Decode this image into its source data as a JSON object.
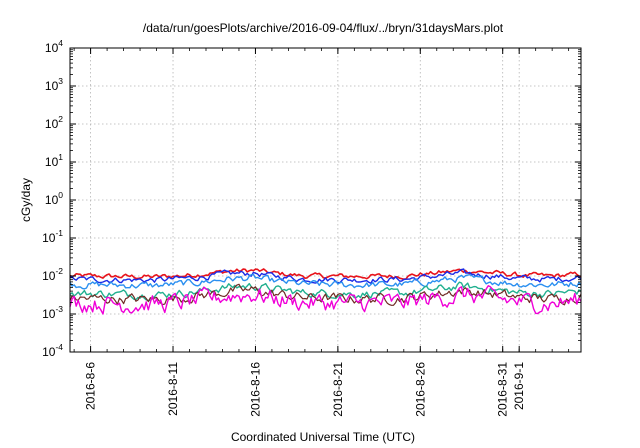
{
  "chart_data": {
    "type": "line",
    "title": "/data/run/goesPlots/archive/2016-09-04/flux/../bryn/31daysMars.plot",
    "xlabel": "Coordinated Universal Time (UTC)",
    "ylabel": "cGy/day",
    "yscale": "log",
    "ylim": [
      0.0001,
      10000
    ],
    "xlim": [
      "2016-08-04T18:00",
      "2016-09-04T18:00"
    ],
    "grid": true,
    "y_ticks": [
      {
        "base": "10",
        "exp": "4",
        "value": 10000
      },
      {
        "base": "10",
        "exp": "3",
        "value": 1000
      },
      {
        "base": "10",
        "exp": "2",
        "value": 100
      },
      {
        "base": "10",
        "exp": "1",
        "value": 10
      },
      {
        "base": "10",
        "exp": "0",
        "value": 1
      },
      {
        "base": "10",
        "exp": "-1",
        "value": 0.1
      },
      {
        "base": "10",
        "exp": "-2",
        "value": 0.01
      },
      {
        "base": "10",
        "exp": "-3",
        "value": 0.001
      },
      {
        "base": "10",
        "exp": "-4",
        "value": 0.0001
      }
    ],
    "x_ticks": [
      {
        "label": "2016-8-6",
        "date": "2016-08-06"
      },
      {
        "label": "2016-8-11",
        "date": "2016-08-11"
      },
      {
        "label": "2016-8-16",
        "date": "2016-08-16"
      },
      {
        "label": "2016-8-21",
        "date": "2016-08-21"
      },
      {
        "label": "2016-8-26",
        "date": "2016-08-26"
      },
      {
        "label": "2016-8-31",
        "date": "2016-08-31"
      },
      {
        "label": "2016-9-1",
        "date": "2016-09-01"
      }
    ],
    "series": [
      {
        "color": "#e8131b",
        "width": 1.6,
        "noise": 0.05,
        "points": [
          [
            "2016-08-04T18:00",
            0.01
          ],
          [
            "2016-08-07",
            "0.0098"
          ],
          [
            "2016-08-10",
            0.0095
          ],
          [
            "2016-08-12",
            0.0105
          ],
          [
            "2016-08-14T12:00",
            0.0135
          ],
          [
            "2016-08-16",
            0.014
          ],
          [
            "2016-08-17",
            0.012
          ],
          [
            "2016-08-19",
            0.01
          ],
          [
            "2016-08-22",
            0.0098
          ],
          [
            "2016-08-25",
            0.01
          ],
          [
            "2016-08-27",
            0.012
          ],
          [
            "2016-08-28T12:00",
            0.014
          ],
          [
            "2016-08-30",
            0.0125
          ],
          [
            "2016-09-01",
            0.0105
          ],
          [
            "2016-09-03",
            0.01
          ],
          [
            "2016-09-04T18:00",
            0.011
          ]
        ]
      },
      {
        "color": "#1a2be6",
        "width": 1.4,
        "noise": 0.06,
        "points": [
          [
            "2016-08-04T18:00",
            0.0082
          ],
          [
            "2016-08-07",
            "0.0080"
          ],
          [
            "2016-08-10",
            0.0078
          ],
          [
            "2016-08-12",
            0.0088
          ],
          [
            "2016-08-14T12:00",
            0.0115
          ],
          [
            "2016-08-16",
            0.0118
          ],
          [
            "2016-08-17",
            0.01
          ],
          [
            "2016-08-19",
            0.0083
          ],
          [
            "2016-08-22",
            0.008
          ],
          [
            "2016-08-25",
            0.0082
          ],
          [
            "2016-08-27",
            0.01
          ],
          [
            "2016-08-28T12:00",
            0.0118
          ],
          [
            "2016-08-30",
            0.0105
          ],
          [
            "2016-09-01",
            0.0086
          ],
          [
            "2016-09-03",
            0.0082
          ],
          [
            "2016-09-04T18:00",
            0.0092
          ]
        ]
      },
      {
        "color": "#2a8ff0",
        "width": 1.4,
        "noise": 0.07,
        "points": [
          [
            "2016-08-04T18:00",
            0.006
          ],
          [
            "2016-08-07",
            "0.0058"
          ],
          [
            "2016-08-10",
            0.0056
          ],
          [
            "2016-08-12",
            0.0064
          ],
          [
            "2016-08-14T12:00",
            0.0085
          ],
          [
            "2016-08-16",
            0.0088
          ],
          [
            "2016-08-17",
            0.0074
          ],
          [
            "2016-08-19",
            0.0061
          ],
          [
            "2016-08-22",
            0.0058
          ],
          [
            "2016-08-25",
            0.006
          ],
          [
            "2016-08-27",
            0.0074
          ],
          [
            "2016-08-28T12:00",
            0.0088
          ],
          [
            "2016-08-30",
            0.0076
          ],
          [
            "2016-09-01",
            0.0062
          ],
          [
            "2016-09-03",
            0.0059
          ],
          [
            "2016-09-04T18:00",
            0.0068
          ]
        ]
      },
      {
        "color": "#21b08f",
        "width": 1.4,
        "noise": 0.08,
        "points": [
          [
            "2016-08-04T18:00",
            0.0035
          ],
          [
            "2016-08-07",
            "0.0034"
          ],
          [
            "2016-08-10",
            0.0032
          ],
          [
            "2016-08-12",
            0.0037
          ],
          [
            "2016-08-14T12:00",
            0.0052
          ],
          [
            "2016-08-16",
            0.0055
          ],
          [
            "2016-08-17",
            0.0045
          ],
          [
            "2016-08-19",
            0.0036
          ],
          [
            "2016-08-22",
            0.0034
          ],
          [
            "2016-08-25",
            0.0035
          ],
          [
            "2016-08-27",
            0.0044
          ],
          [
            "2016-08-28T12:00",
            0.0054
          ],
          [
            "2016-08-30",
            0.0046
          ],
          [
            "2016-09-01",
            0.0036
          ],
          [
            "2016-09-03",
            0.0034
          ],
          [
            "2016-09-04T18:00",
            0.004
          ]
        ]
      },
      {
        "color": "#6f2a24",
        "width": 1.2,
        "noise": 0.1,
        "points": [
          [
            "2016-08-04T18:00",
            0.0026
          ],
          [
            "2016-08-07",
            "0.0025"
          ],
          [
            "2016-08-10",
            0.0024
          ],
          [
            "2016-08-12",
            0.0028
          ],
          [
            "2016-08-14T12:00",
            0.004
          ],
          [
            "2016-08-16",
            0.0042
          ],
          [
            "2016-08-17",
            0.0034
          ],
          [
            "2016-08-19",
            0.0027
          ],
          [
            "2016-08-22",
            0.0025
          ],
          [
            "2016-08-25",
            0.0026
          ],
          [
            "2016-08-27",
            0.0034
          ],
          [
            "2016-08-28T12:00",
            0.0041
          ],
          [
            "2016-08-30",
            0.0035
          ],
          [
            "2016-09-01",
            0.0027
          ],
          [
            "2016-09-03",
            0.0025
          ],
          [
            "2016-09-04T18:00",
            0.003
          ]
        ]
      },
      {
        "color": "#f000d8",
        "width": 1.4,
        "noise": 0.18,
        "points": [
          [
            "2016-08-04T18:00",
            0.002
          ],
          [
            "2016-08-07",
            "0.0019"
          ],
          [
            "2016-08-10",
            0.0018
          ],
          [
            "2016-08-12",
            0.0021
          ],
          [
            "2016-08-14T12:00",
            0.0031
          ],
          [
            "2016-08-16",
            0.0033
          ],
          [
            "2016-08-17",
            0.0026
          ],
          [
            "2016-08-19",
            0.002
          ],
          [
            "2016-08-22",
            0.0019
          ],
          [
            "2016-08-25",
            0.002
          ],
          [
            "2016-08-27",
            0.0026
          ],
          [
            "2016-08-28T12:00",
            0.0032
          ],
          [
            "2016-08-30",
            0.0027
          ],
          [
            "2016-09-01",
            0.0021
          ],
          [
            "2016-09-03",
            0.0019
          ],
          [
            "2016-09-04T18:00",
            0.0023
          ]
        ]
      }
    ]
  }
}
